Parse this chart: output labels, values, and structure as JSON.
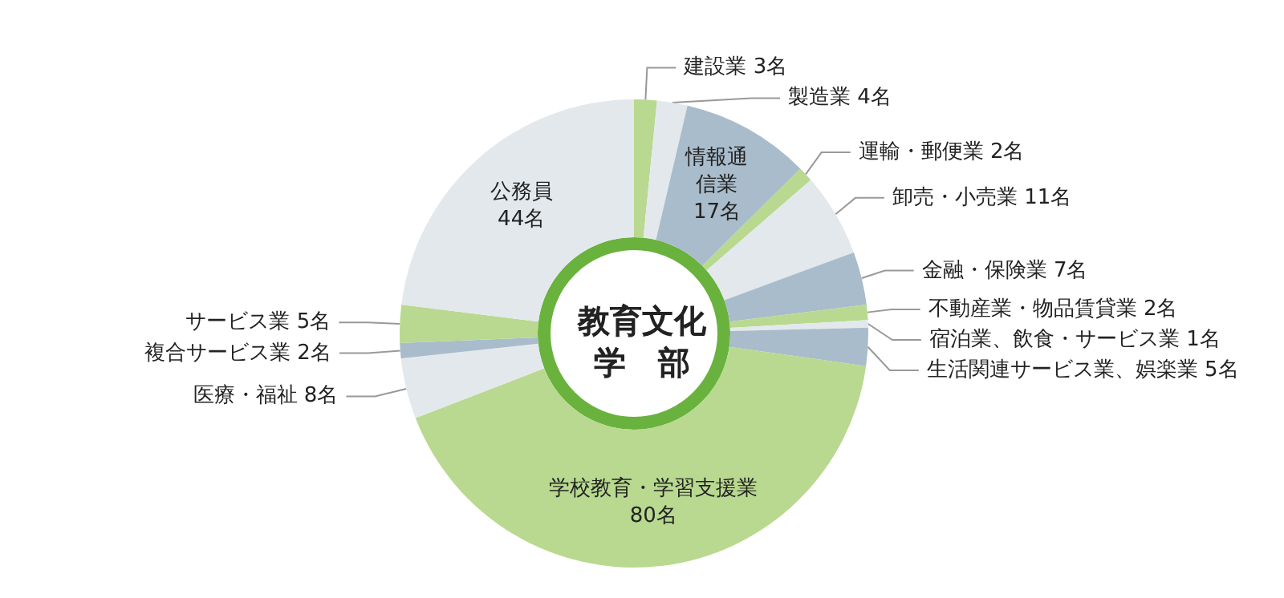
{
  "chart_data": {
    "type": "donut",
    "title": "教育文化学　部",
    "categories": [
      "建設業",
      "製造業",
      "情報通信業",
      "運輸・郵便業",
      "卸売・小売業",
      "金融・保険業",
      "不動産業・物品賃貸業",
      "宿泊業、飲食・サービス業",
      "生活関連サービス業、娯楽業",
      "学校教育・学習支援業",
      "医療・福祉",
      "複合サービス業",
      "サービス業",
      "公務員"
    ],
    "values": [
      3,
      4,
      17,
      2,
      11,
      7,
      2,
      1,
      5,
      80,
      8,
      2,
      5,
      44
    ],
    "value_labels": [
      "3名",
      "4名",
      "17名",
      "2名",
      "11名",
      "7名",
      "2名",
      "1名",
      "5名",
      "80名",
      "8名",
      "2名",
      "5名",
      "44名"
    ],
    "colors": [
      "#b8d98f",
      "#e3e8ed",
      "#a9bccb",
      "#b8d98f",
      "#e3e8ed",
      "#a9bccb",
      "#b8d98f",
      "#e3e8ed",
      "#a9bccb",
      "#b8d98f",
      "#e3e8ed",
      "#a9bccb",
      "#b8d98f",
      "#e3e8ed"
    ],
    "legend": false
  }
}
